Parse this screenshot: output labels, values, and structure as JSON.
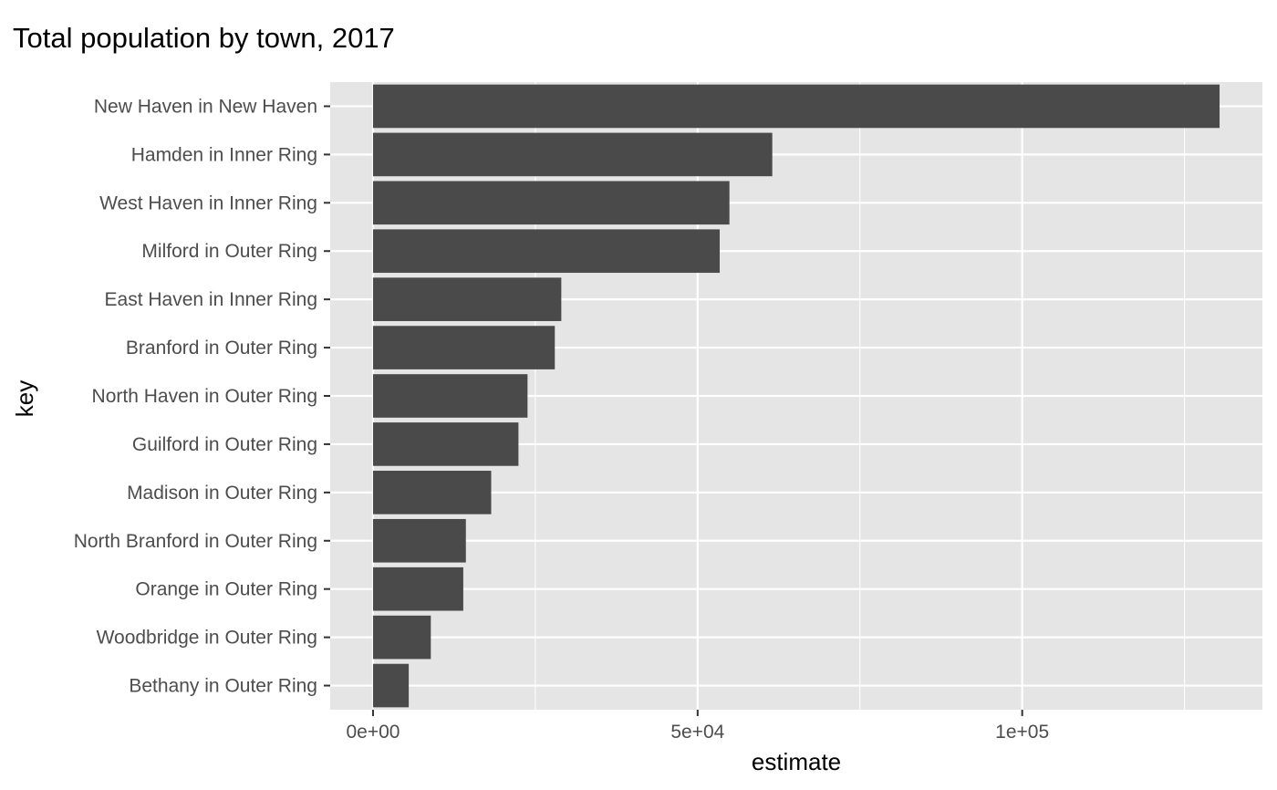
{
  "chart_data": {
    "type": "bar",
    "orientation": "horizontal",
    "title": "Total population by town, 2017",
    "xlabel": "estimate",
    "ylabel": "key",
    "categories": [
      "New Haven in New Haven",
      "Hamden in Inner Ring",
      "West Haven in Inner Ring",
      "Milford in Outer Ring",
      "East Haven in Inner Ring",
      "Branford in Outer Ring",
      "North Haven in Outer Ring",
      "Guilford in Outer Ring",
      "Madison in Outer Ring",
      "North Branford in Outer Ring",
      "Orange in Outer Ring",
      "Woodbridge in Outer Ring",
      "Bethany in Outer Ring"
    ],
    "values": [
      130400,
      61500,
      54900,
      53400,
      29000,
      28000,
      23800,
      22400,
      18200,
      14300,
      13900,
      8900,
      5500
    ],
    "xlim": [
      -6600,
      137000
    ],
    "x_ticks": [
      0,
      50000,
      100000
    ],
    "x_tick_labels": [
      "0e+00",
      "5e+04",
      "1e+05"
    ],
    "x_minor_ticks": [
      25000,
      75000,
      125000
    ],
    "grid": true,
    "colors": {
      "bar": "#4a4a4a",
      "panel_background": "#e5e5e5",
      "grid": "#ffffff",
      "tick_text": "#4d4d4d",
      "tick_mark": "#333333"
    }
  }
}
